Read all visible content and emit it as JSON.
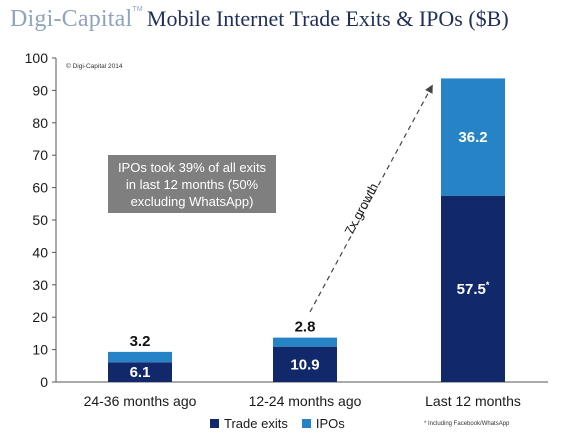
{
  "header": {
    "brand": "Digi-Capital",
    "trademark": "TM",
    "title": "Mobile Internet Trade Exits & IPOs ($B)"
  },
  "source": "© Digi-Capital 2014",
  "annotation": "IPOs took 39% of all exits in last 12 months (50% excluding WhatsApp)",
  "growth_label": "7x growth",
  "footnote": "* Including Facebook/WhatsApp",
  "colors": {
    "trade_exits": "#11296b",
    "ipos": "#2683c6",
    "note_box": "#7f7f7f"
  },
  "chart_data": {
    "type": "bar",
    "stacked": true,
    "categories": [
      "24-36 months ago",
      "12-24 months ago",
      "Last 12 months"
    ],
    "series": [
      {
        "name": "Trade exits",
        "values": [
          6.1,
          10.9,
          57.5
        ],
        "labels": [
          "6.1",
          "10.9",
          "57.5*"
        ]
      },
      {
        "name": "IPOs",
        "values": [
          3.2,
          2.8,
          36.2
        ],
        "labels": [
          "3.2",
          "2.8",
          "36.2"
        ]
      }
    ],
    "ylim": [
      0,
      100
    ],
    "yticks": [
      0,
      10,
      20,
      30,
      40,
      50,
      60,
      70,
      80,
      90,
      100
    ],
    "grid": false,
    "legend": "bottom"
  }
}
